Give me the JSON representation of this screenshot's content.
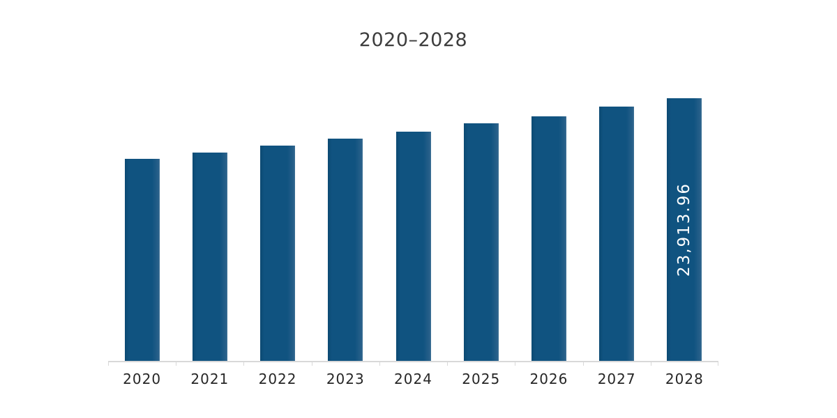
{
  "chart_data": {
    "type": "bar",
    "title": "2020–2028",
    "categories": [
      "2020",
      "2021",
      "2022",
      "2023",
      "2024",
      "2025",
      "2026",
      "2027",
      "2028"
    ],
    "values": [
      18395,
      18965,
      19570,
      20235,
      20900,
      21600,
      22295,
      23185,
      23913.96
    ],
    "data_labels": [
      {
        "category": "2028",
        "text": "23,913.96",
        "position": "inside-center",
        "orientation": "vertical-bottom-to-top",
        "color": "#ffffff"
      }
    ],
    "xlabel": "",
    "ylabel": "",
    "ylim": [
      0,
      23913.96
    ],
    "grid": false,
    "legend": false,
    "colors": {
      "bar_fill": "#105380",
      "axis_line": "#d8d8d8",
      "title_text": "#3d3d3d",
      "tick_label_text": "#262626",
      "background": "#ffffff"
    }
  }
}
